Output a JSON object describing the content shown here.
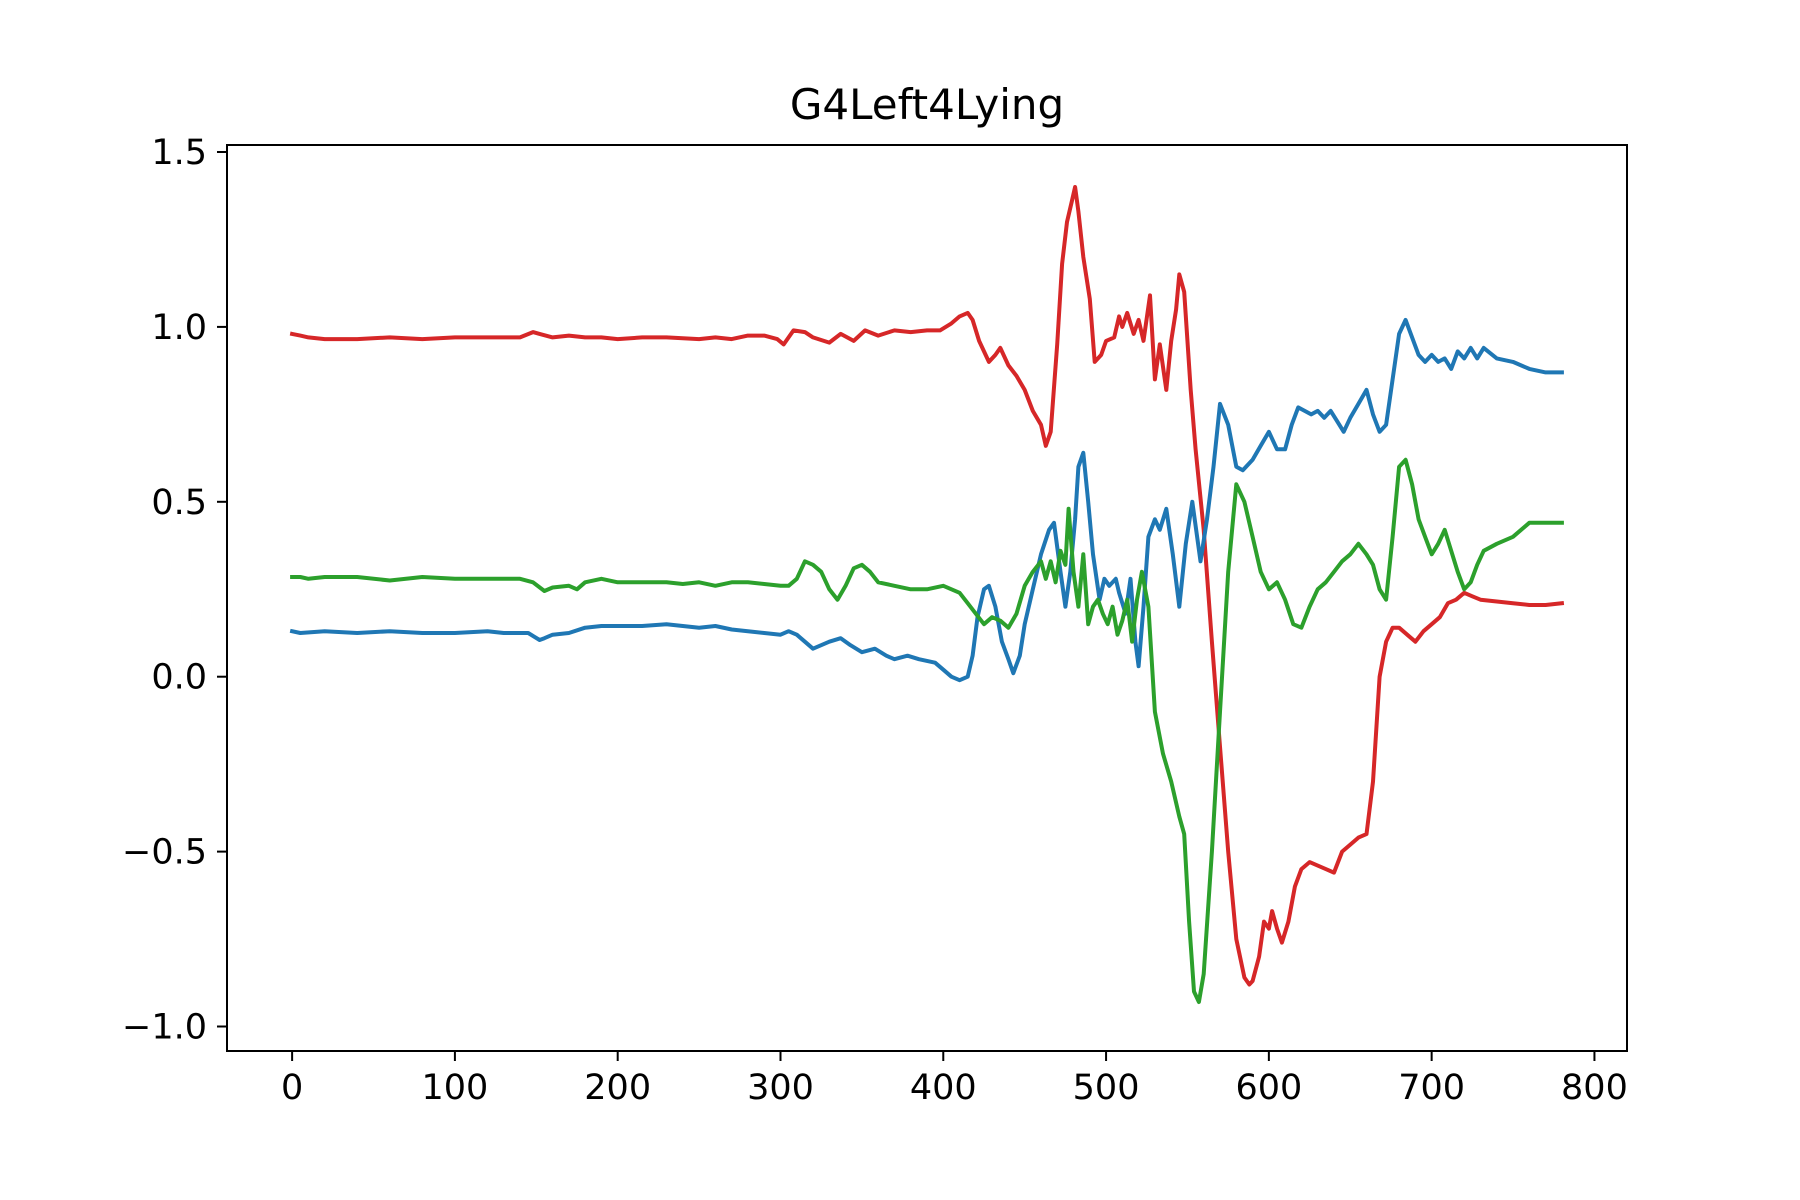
{
  "chart_data": {
    "type": "line",
    "title": "G4Left4Lying",
    "xlabel": "",
    "ylabel": "",
    "xlim": [
      -40,
      820
    ],
    "ylim": [
      -1.07,
      1.52
    ],
    "xticks": [
      0,
      100,
      200,
      300,
      400,
      500,
      600,
      700,
      800
    ],
    "xtick_labels": [
      "0",
      "100",
      "200",
      "300",
      "400",
      "500",
      "600",
      "700",
      "800"
    ],
    "yticks": [
      -1.0,
      -0.5,
      0.0,
      0.5,
      1.0,
      1.5
    ],
    "ytick_labels": [
      "−1.0",
      "−0.5",
      "0.0",
      "0.5",
      "1.0",
      "1.5"
    ],
    "grid": false,
    "legend": "none",
    "series": [
      {
        "color": "#d62728",
        "x": [
          0,
          5,
          10,
          20,
          40,
          60,
          80,
          100,
          120,
          140,
          148,
          152,
          160,
          170,
          180,
          190,
          200,
          215,
          230,
          250,
          260,
          270,
          280,
          290,
          298,
          302,
          308,
          315,
          320,
          330,
          337,
          345,
          352,
          360,
          370,
          380,
          390,
          398,
          405,
          410,
          415,
          418,
          422,
          428,
          432,
          435,
          440,
          445,
          450,
          455,
          460,
          463,
          466,
          470,
          473,
          476,
          479,
          481,
          483,
          486,
          490,
          493,
          497,
          500,
          505,
          508,
          510,
          513,
          517,
          520,
          523,
          527,
          530,
          533,
          537,
          540,
          543,
          545,
          548,
          552,
          555,
          560,
          565,
          570,
          575,
          580,
          585,
          588,
          590,
          594,
          597,
          600,
          602,
          605,
          608,
          612,
          616,
          620,
          625,
          630,
          635,
          640,
          645,
          650,
          655,
          660,
          664,
          668,
          672,
          676,
          680,
          685,
          690,
          695,
          700,
          705,
          710,
          715,
          720,
          725,
          730,
          740,
          750,
          760,
          770,
          780
        ],
        "y": [
          0.98,
          0.975,
          0.97,
          0.965,
          0.965,
          0.97,
          0.965,
          0.97,
          0.97,
          0.97,
          0.985,
          0.98,
          0.97,
          0.975,
          0.97,
          0.97,
          0.965,
          0.97,
          0.97,
          0.965,
          0.97,
          0.965,
          0.975,
          0.975,
          0.965,
          0.95,
          0.99,
          0.985,
          0.97,
          0.955,
          0.98,
          0.96,
          0.99,
          0.975,
          0.99,
          0.985,
          0.99,
          0.99,
          1.01,
          1.03,
          1.04,
          1.02,
          0.96,
          0.9,
          0.92,
          0.94,
          0.89,
          0.86,
          0.82,
          0.76,
          0.72,
          0.66,
          0.7,
          0.95,
          1.18,
          1.3,
          1.36,
          1.4,
          1.33,
          1.2,
          1.08,
          0.9,
          0.92,
          0.96,
          0.97,
          1.03,
          1.0,
          1.04,
          0.98,
          1.02,
          0.96,
          1.09,
          0.85,
          0.95,
          0.82,
          0.96,
          1.05,
          1.15,
          1.1,
          0.82,
          0.65,
          0.42,
          0.1,
          -0.2,
          -0.5,
          -0.75,
          -0.86,
          -0.88,
          -0.87,
          -0.8,
          -0.7,
          -0.72,
          -0.67,
          -0.72,
          -0.76,
          -0.7,
          -0.6,
          -0.55,
          -0.53,
          -0.54,
          -0.55,
          -0.56,
          -0.5,
          -0.48,
          -0.46,
          -0.45,
          -0.3,
          0.0,
          0.1,
          0.14,
          0.14,
          0.12,
          0.1,
          0.13,
          0.15,
          0.17,
          0.21,
          0.22,
          0.24,
          0.23,
          0.22,
          0.215,
          0.21,
          0.205,
          0.205,
          0.21
        ]
      },
      {
        "color": "#1f77b4",
        "x": [
          0,
          5,
          20,
          40,
          60,
          80,
          100,
          120,
          130,
          145,
          152,
          155,
          160,
          170,
          180,
          190,
          200,
          215,
          230,
          240,
          250,
          260,
          270,
          280,
          290,
          300,
          305,
          310,
          315,
          320,
          330,
          337,
          343,
          350,
          358,
          365,
          370,
          378,
          385,
          395,
          400,
          405,
          410,
          415,
          418,
          421,
          425,
          428,
          432,
          436,
          440,
          443,
          447,
          450,
          455,
          460,
          465,
          468,
          472,
          475,
          478,
          481,
          483,
          486,
          489,
          492,
          496,
          499,
          502,
          506,
          508,
          512,
          515,
          518,
          520,
          523,
          526,
          530,
          533,
          537,
          541,
          545,
          549,
          553,
          558,
          562,
          566,
          570,
          575,
          580,
          584,
          590,
          595,
          600,
          605,
          610,
          614,
          618,
          622,
          626,
          630,
          634,
          638,
          642,
          646,
          650,
          655,
          660,
          664,
          668,
          672,
          676,
          680,
          684,
          688,
          692,
          696,
          700,
          704,
          708,
          712,
          716,
          720,
          724,
          728,
          732,
          740,
          750,
          760,
          770,
          780
        ],
        "y": [
          0.13,
          0.125,
          0.13,
          0.125,
          0.13,
          0.125,
          0.125,
          0.13,
          0.125,
          0.125,
          0.105,
          0.11,
          0.12,
          0.125,
          0.14,
          0.145,
          0.145,
          0.145,
          0.15,
          0.145,
          0.14,
          0.145,
          0.135,
          0.13,
          0.125,
          0.12,
          0.13,
          0.12,
          0.1,
          0.08,
          0.1,
          0.11,
          0.09,
          0.07,
          0.08,
          0.06,
          0.05,
          0.06,
          0.05,
          0.04,
          0.02,
          0.0,
          -0.01,
          0.0,
          0.06,
          0.17,
          0.25,
          0.26,
          0.2,
          0.1,
          0.05,
          0.01,
          0.06,
          0.15,
          0.25,
          0.35,
          0.42,
          0.44,
          0.3,
          0.2,
          0.3,
          0.45,
          0.6,
          0.64,
          0.5,
          0.35,
          0.22,
          0.28,
          0.26,
          0.28,
          0.24,
          0.18,
          0.28,
          0.1,
          0.03,
          0.2,
          0.4,
          0.45,
          0.42,
          0.48,
          0.35,
          0.2,
          0.38,
          0.5,
          0.33,
          0.45,
          0.6,
          0.78,
          0.72,
          0.6,
          0.59,
          0.62,
          0.66,
          0.7,
          0.65,
          0.65,
          0.72,
          0.77,
          0.76,
          0.75,
          0.76,
          0.74,
          0.76,
          0.73,
          0.7,
          0.74,
          0.78,
          0.82,
          0.75,
          0.7,
          0.72,
          0.85,
          0.98,
          1.02,
          0.97,
          0.92,
          0.9,
          0.92,
          0.9,
          0.91,
          0.88,
          0.93,
          0.91,
          0.94,
          0.91,
          0.94,
          0.91,
          0.9,
          0.88,
          0.87,
          0.87
        ]
      },
      {
        "color": "#2ca02c",
        "x": [
          0,
          5,
          10,
          20,
          40,
          60,
          80,
          100,
          120,
          140,
          148,
          155,
          160,
          170,
          175,
          180,
          190,
          200,
          215,
          230,
          240,
          250,
          260,
          270,
          280,
          290,
          300,
          305,
          310,
          315,
          320,
          325,
          330,
          335,
          340,
          345,
          350,
          355,
          360,
          370,
          380,
          390,
          400,
          410,
          415,
          420,
          425,
          430,
          435,
          440,
          445,
          450,
          455,
          460,
          463,
          466,
          469,
          472,
          475,
          477,
          480,
          483,
          486,
          489,
          492,
          495,
          498,
          501,
          504,
          507,
          510,
          513,
          516,
          519,
          522,
          526,
          530,
          535,
          540,
          545,
          548,
          551,
          554,
          557,
          560,
          565,
          570,
          575,
          580,
          585,
          590,
          595,
          600,
          605,
          610,
          615,
          620,
          625,
          630,
          635,
          640,
          645,
          650,
          655,
          660,
          664,
          668,
          672,
          676,
          680,
          684,
          688,
          692,
          696,
          700,
          704,
          708,
          712,
          716,
          720,
          724,
          728,
          732,
          740,
          750,
          760,
          770,
          780
        ],
        "y": [
          0.285,
          0.285,
          0.28,
          0.285,
          0.285,
          0.275,
          0.285,
          0.28,
          0.28,
          0.28,
          0.27,
          0.245,
          0.255,
          0.26,
          0.25,
          0.27,
          0.28,
          0.27,
          0.27,
          0.27,
          0.265,
          0.27,
          0.26,
          0.27,
          0.27,
          0.265,
          0.26,
          0.26,
          0.28,
          0.33,
          0.32,
          0.3,
          0.25,
          0.22,
          0.26,
          0.31,
          0.32,
          0.3,
          0.27,
          0.26,
          0.25,
          0.25,
          0.26,
          0.24,
          0.21,
          0.18,
          0.15,
          0.17,
          0.16,
          0.14,
          0.18,
          0.26,
          0.3,
          0.33,
          0.28,
          0.33,
          0.27,
          0.36,
          0.32,
          0.48,
          0.3,
          0.2,
          0.35,
          0.15,
          0.2,
          0.22,
          0.18,
          0.15,
          0.2,
          0.12,
          0.16,
          0.22,
          0.1,
          0.22,
          0.3,
          0.2,
          -0.1,
          -0.22,
          -0.3,
          -0.4,
          -0.45,
          -0.7,
          -0.9,
          -0.93,
          -0.85,
          -0.5,
          -0.1,
          0.3,
          0.55,
          0.5,
          0.4,
          0.3,
          0.25,
          0.27,
          0.22,
          0.15,
          0.14,
          0.2,
          0.25,
          0.27,
          0.3,
          0.33,
          0.35,
          0.38,
          0.35,
          0.32,
          0.25,
          0.22,
          0.4,
          0.6,
          0.62,
          0.55,
          0.45,
          0.4,
          0.35,
          0.38,
          0.42,
          0.36,
          0.3,
          0.25,
          0.27,
          0.32,
          0.36,
          0.38,
          0.4,
          0.44,
          0.44,
          0.44
        ]
      }
    ]
  }
}
